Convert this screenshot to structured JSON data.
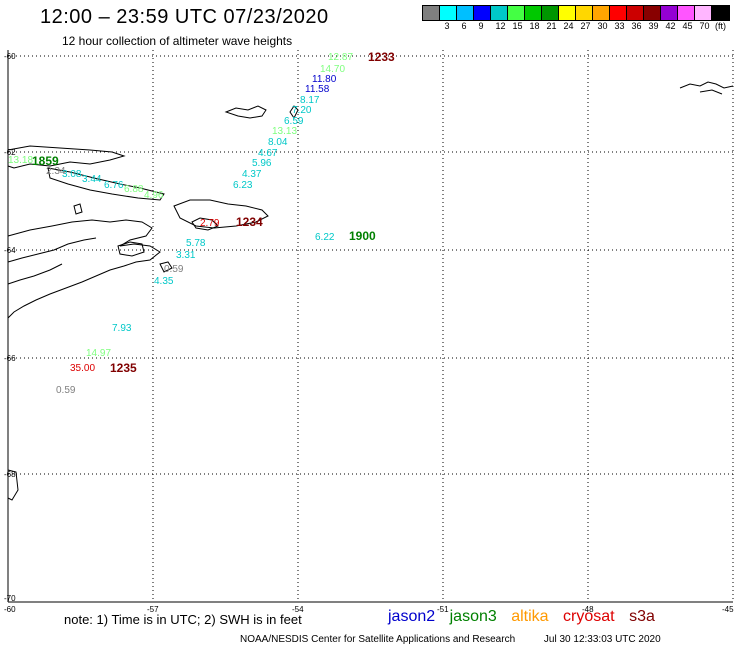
{
  "title": "12:00 – 23:59 UTC 07/23/2020",
  "subtitle": "12 hour collection of altimeter wave heights",
  "legend": {
    "colors": [
      "#7f7f7f",
      "#00ffff",
      "#00bfff",
      "#0000ff",
      "#00c8c8",
      "#44ff44",
      "#00c800",
      "#009600",
      "#ffff00",
      "#ffd700",
      "#ffa500",
      "#ff0000",
      "#cc0000",
      "#880000",
      "#9400d3",
      "#ff55ff",
      "#ffb6ff",
      "#000000"
    ],
    "labels": [
      "3",
      "6",
      "9",
      "12",
      "15",
      "18",
      "21",
      "24",
      "27",
      "30",
      "33",
      "36",
      "39",
      "42",
      "45",
      "70"
    ],
    "unit": "(ft)"
  },
  "axes": {
    "lat_labels": [
      "-60",
      "-62",
      "-64",
      "-66",
      "-68",
      "-70"
    ],
    "lon_labels": [
      "-60",
      "-57",
      "-54",
      "-51",
      "-48",
      "-45"
    ]
  },
  "colors": {
    "cyan": "#00c8c8",
    "light_green": "#7fff7f",
    "blue": "#0000cc",
    "gray": "#808080",
    "dark_red": "#800000",
    "red": "#dd0000",
    "green": "#008000",
    "orange": "#ff9900"
  },
  "track_labels": [
    {
      "text": "12.87",
      "color": "#7fff7f"
    },
    {
      "text": "14.70",
      "color": "#7fff7f"
    },
    {
      "text": "11.80",
      "color": "#0000cc"
    },
    {
      "text": "11.58",
      "color": "#0000cc"
    },
    {
      "text": "8.17",
      "color": "#00c8c8"
    },
    {
      "text": "7.20",
      "color": "#00c8c8"
    },
    {
      "text": "6.59",
      "color": "#00c8c8"
    },
    {
      "text": "13.13",
      "color": "#7fff7f"
    },
    {
      "text": "8.04",
      "color": "#00c8c8"
    },
    {
      "text": "4.67",
      "color": "#00c8c8"
    },
    {
      "text": "5.96",
      "color": "#00c8c8"
    },
    {
      "text": "4.37",
      "color": "#00c8c8"
    },
    {
      "text": "6.23",
      "color": "#00c8c8"
    },
    {
      "text": "13.18",
      "color": "#7fff7f"
    },
    {
      "text": "2.34",
      "color": "#808080"
    },
    {
      "text": "3.08",
      "color": "#00c8c8"
    },
    {
      "text": "3.44",
      "color": "#00c8c8"
    },
    {
      "text": "6.76",
      "color": "#00c8c8"
    },
    {
      "text": "6.88",
      "color": "#7fff7f"
    },
    {
      "text": "4.96",
      "color": "#7fff7f"
    },
    {
      "text": "2.79",
      "color": "#dd0000"
    },
    {
      "text": "5.78",
      "color": "#00c8c8"
    },
    {
      "text": "3.31",
      "color": "#00c8c8"
    },
    {
      "text": "0.59",
      "color": "#808080"
    },
    {
      "text": "4.35",
      "color": "#00c8c8"
    },
    {
      "text": "7.93",
      "color": "#00c8c8"
    },
    {
      "text": "14.97",
      "color": "#7fff7f"
    },
    {
      "text": "35.00",
      "color": "#dd0000"
    },
    {
      "text": "0.59",
      "color": "#808080"
    },
    {
      "text": "6.22",
      "color": "#00c8c8"
    }
  ],
  "time_labels": [
    {
      "text": "1233",
      "color": "#800000"
    },
    {
      "text": "1859",
      "color": "#008000"
    },
    {
      "text": "1234",
      "color": "#800000"
    },
    {
      "text": "1900",
      "color": "#008000"
    },
    {
      "text": "1235",
      "color": "#800000"
    }
  ],
  "note": "note: 1) Time is in UTC; 2) SWH is in feet",
  "satellites": [
    {
      "name": "jason2",
      "color": "#0000cc"
    },
    {
      "name": "jason3",
      "color": "#008000"
    },
    {
      "name": "altika",
      "color": "#ff9900"
    },
    {
      "name": "cryosat",
      "color": "#dd0000"
    },
    {
      "name": "s3a",
      "color": "#800000"
    }
  ],
  "credit_left": "NOAA/NESDIS Center for Satellite Applications and Research",
  "credit_right": "Jul 30 12:33:03 UTC 2020"
}
